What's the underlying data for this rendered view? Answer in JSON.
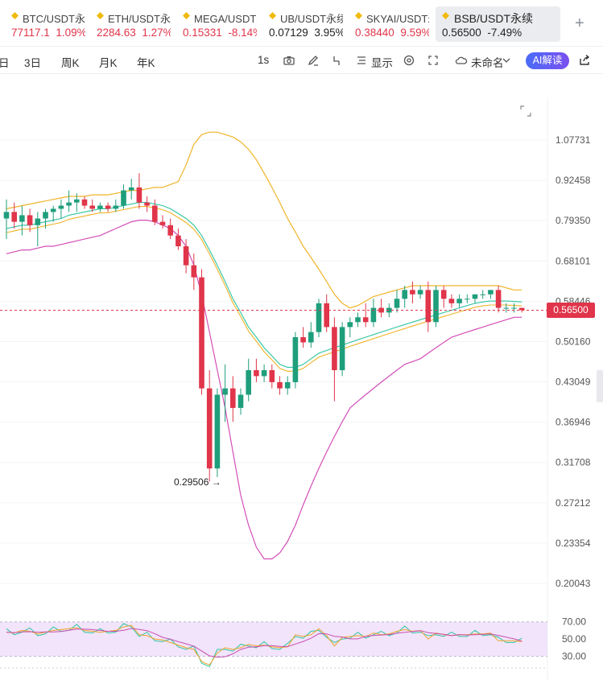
{
  "tickers": [
    {
      "name": "BTC/USDT永续",
      "price": "77117.1",
      "change": "1.09%",
      "dir": "up"
    },
    {
      "name": "ETH/USDT永续",
      "price": "2284.63",
      "change": "1.27%",
      "dir": "up"
    },
    {
      "name": "MEGA/USDT永续",
      "price": "0.15331",
      "change": "-8.14%",
      "dir": "down"
    },
    {
      "name": "UB/USDT永续",
      "price": "0.07129",
      "change": "3.95%",
      "dir": "up_dark"
    },
    {
      "name": "SKYAI/USDT永续",
      "price": "0.38440",
      "change": "9.59%",
      "dir": "up"
    },
    {
      "name": "BSB/USDT永续",
      "price": "0.56500",
      "change": "-7.49%",
      "dir": "down_dark"
    }
  ],
  "toolbar": {
    "intervals": [
      "日",
      "3日",
      "周K",
      "月K",
      "年K"
    ],
    "realtime": "1s",
    "display": "显示",
    "unnamed": "未命名",
    "ai": "AI解读"
  },
  "colors": {
    "up": "#1f9e7c",
    "down": "#e0354a",
    "boll_mid": "#2ec4a0",
    "boll_band": "#f0b429",
    "boll_low": "#d44fb8",
    "rsi_band": "#f1e4fb"
  },
  "chart_data": {
    "type": "candlestick",
    "y_ticks": [
      "1.07731",
      "0.92458",
      "0.79350",
      "0.68101",
      "0.58446",
      "0.50160",
      "0.43049",
      "0.36946",
      "0.31708",
      "0.27212",
      "0.23354",
      "0.20043"
    ],
    "current_price": "0.56500",
    "lowest_label": "0.29506",
    "rsi_ticks": [
      "70.00",
      "50.00",
      "30.00"
    ],
    "candles": [
      {
        "o": 0.8,
        "h": 0.86,
        "l": 0.74,
        "c": 0.82
      },
      {
        "o": 0.82,
        "h": 0.85,
        "l": 0.77,
        "c": 0.79
      },
      {
        "o": 0.79,
        "h": 0.84,
        "l": 0.75,
        "c": 0.81
      },
      {
        "o": 0.81,
        "h": 0.83,
        "l": 0.76,
        "c": 0.78
      },
      {
        "o": 0.78,
        "h": 0.82,
        "l": 0.72,
        "c": 0.8
      },
      {
        "o": 0.8,
        "h": 0.83,
        "l": 0.77,
        "c": 0.82
      },
      {
        "o": 0.82,
        "h": 0.84,
        "l": 0.79,
        "c": 0.83
      },
      {
        "o": 0.83,
        "h": 0.86,
        "l": 0.8,
        "c": 0.84
      },
      {
        "o": 0.84,
        "h": 0.89,
        "l": 0.82,
        "c": 0.85
      },
      {
        "o": 0.85,
        "h": 0.88,
        "l": 0.82,
        "c": 0.86
      },
      {
        "o": 0.86,
        "h": 0.87,
        "l": 0.83,
        "c": 0.84
      },
      {
        "o": 0.84,
        "h": 0.86,
        "l": 0.82,
        "c": 0.83
      },
      {
        "o": 0.83,
        "h": 0.85,
        "l": 0.82,
        "c": 0.84
      },
      {
        "o": 0.84,
        "h": 0.85,
        "l": 0.82,
        "c": 0.83
      },
      {
        "o": 0.83,
        "h": 0.86,
        "l": 0.82,
        "c": 0.84
      },
      {
        "o": 0.84,
        "h": 0.91,
        "l": 0.83,
        "c": 0.89
      },
      {
        "o": 0.89,
        "h": 0.93,
        "l": 0.86,
        "c": 0.9
      },
      {
        "o": 0.9,
        "h": 0.95,
        "l": 0.83,
        "c": 0.85
      },
      {
        "o": 0.85,
        "h": 0.87,
        "l": 0.82,
        "c": 0.84
      },
      {
        "o": 0.84,
        "h": 0.86,
        "l": 0.78,
        "c": 0.79
      },
      {
        "o": 0.79,
        "h": 0.81,
        "l": 0.77,
        "c": 0.78
      },
      {
        "o": 0.78,
        "h": 0.8,
        "l": 0.74,
        "c": 0.75
      },
      {
        "o": 0.75,
        "h": 0.77,
        "l": 0.71,
        "c": 0.72
      },
      {
        "o": 0.72,
        "h": 0.74,
        "l": 0.65,
        "c": 0.67
      },
      {
        "o": 0.67,
        "h": 0.7,
        "l": 0.61,
        "c": 0.64
      },
      {
        "o": 0.64,
        "h": 0.66,
        "l": 0.41,
        "c": 0.42
      },
      {
        "o": 0.42,
        "h": 0.45,
        "l": 0.295,
        "c": 0.31
      },
      {
        "o": 0.31,
        "h": 0.42,
        "l": 0.3,
        "c": 0.41
      },
      {
        "o": 0.41,
        "h": 0.46,
        "l": 0.37,
        "c": 0.42
      },
      {
        "o": 0.42,
        "h": 0.44,
        "l": 0.37,
        "c": 0.39
      },
      {
        "o": 0.39,
        "h": 0.42,
        "l": 0.38,
        "c": 0.41
      },
      {
        "o": 0.41,
        "h": 0.47,
        "l": 0.4,
        "c": 0.45
      },
      {
        "o": 0.45,
        "h": 0.47,
        "l": 0.43,
        "c": 0.44
      },
      {
        "o": 0.44,
        "h": 0.46,
        "l": 0.43,
        "c": 0.45
      },
      {
        "o": 0.45,
        "h": 0.46,
        "l": 0.42,
        "c": 0.43
      },
      {
        "o": 0.43,
        "h": 0.44,
        "l": 0.41,
        "c": 0.42
      },
      {
        "o": 0.42,
        "h": 0.44,
        "l": 0.41,
        "c": 0.43
      },
      {
        "o": 0.43,
        "h": 0.52,
        "l": 0.42,
        "c": 0.51
      },
      {
        "o": 0.51,
        "h": 0.53,
        "l": 0.49,
        "c": 0.5
      },
      {
        "o": 0.5,
        "h": 0.54,
        "l": 0.49,
        "c": 0.52
      },
      {
        "o": 0.52,
        "h": 0.59,
        "l": 0.51,
        "c": 0.58
      },
      {
        "o": 0.58,
        "h": 0.6,
        "l": 0.52,
        "c": 0.53
      },
      {
        "o": 0.53,
        "h": 0.55,
        "l": 0.4,
        "c": 0.45
      },
      {
        "o": 0.45,
        "h": 0.54,
        "l": 0.44,
        "c": 0.53
      },
      {
        "o": 0.53,
        "h": 0.55,
        "l": 0.51,
        "c": 0.54
      },
      {
        "o": 0.54,
        "h": 0.56,
        "l": 0.53,
        "c": 0.55
      },
      {
        "o": 0.55,
        "h": 0.58,
        "l": 0.53,
        "c": 0.54
      },
      {
        "o": 0.54,
        "h": 0.59,
        "l": 0.53,
        "c": 0.57
      },
      {
        "o": 0.57,
        "h": 0.59,
        "l": 0.55,
        "c": 0.56
      },
      {
        "o": 0.56,
        "h": 0.58,
        "l": 0.55,
        "c": 0.57
      },
      {
        "o": 0.57,
        "h": 0.61,
        "l": 0.56,
        "c": 0.59
      },
      {
        "o": 0.59,
        "h": 0.62,
        "l": 0.57,
        "c": 0.61
      },
      {
        "o": 0.61,
        "h": 0.63,
        "l": 0.58,
        "c": 0.6
      },
      {
        "o": 0.6,
        "h": 0.62,
        "l": 0.59,
        "c": 0.61
      },
      {
        "o": 0.61,
        "h": 0.63,
        "l": 0.52,
        "c": 0.54
      },
      {
        "o": 0.54,
        "h": 0.62,
        "l": 0.53,
        "c": 0.61
      },
      {
        "o": 0.61,
        "h": 0.62,
        "l": 0.57,
        "c": 0.59
      },
      {
        "o": 0.59,
        "h": 0.6,
        "l": 0.57,
        "c": 0.58
      },
      {
        "o": 0.58,
        "h": 0.6,
        "l": 0.57,
        "c": 0.59
      },
      {
        "o": 0.59,
        "h": 0.6,
        "l": 0.58,
        "c": 0.59
      },
      {
        "o": 0.59,
        "h": 0.6,
        "l": 0.58,
        "c": 0.6
      },
      {
        "o": 0.6,
        "h": 0.61,
        "l": 0.59,
        "c": 0.6
      },
      {
        "o": 0.6,
        "h": 0.61,
        "l": 0.59,
        "c": 0.61
      },
      {
        "o": 0.61,
        "h": 0.62,
        "l": 0.56,
        "c": 0.57
      },
      {
        "o": 0.57,
        "h": 0.58,
        "l": 0.56,
        "c": 0.57
      },
      {
        "o": 0.57,
        "h": 0.58,
        "l": 0.56,
        "c": 0.57
      },
      {
        "o": 0.57,
        "h": 0.57,
        "l": 0.56,
        "c": 0.565
      }
    ],
    "boll_mid": [
      0.77,
      0.775,
      0.78,
      0.78,
      0.785,
      0.79,
      0.795,
      0.8,
      0.81,
      0.815,
      0.82,
      0.825,
      0.83,
      0.83,
      0.835,
      0.84,
      0.845,
      0.85,
      0.85,
      0.845,
      0.84,
      0.83,
      0.815,
      0.8,
      0.78,
      0.75,
      0.71,
      0.67,
      0.63,
      0.59,
      0.56,
      0.53,
      0.51,
      0.49,
      0.475,
      0.46,
      0.455,
      0.455,
      0.46,
      0.47,
      0.48,
      0.485,
      0.49,
      0.495,
      0.5,
      0.505,
      0.51,
      0.515,
      0.52,
      0.525,
      0.53,
      0.535,
      0.54,
      0.545,
      0.55,
      0.555,
      0.56,
      0.565,
      0.57,
      0.575,
      0.58,
      0.583,
      0.585,
      0.585,
      0.585,
      0.584,
      0.583
    ],
    "boll_upper": [
      0.83,
      0.835,
      0.84,
      0.845,
      0.85,
      0.855,
      0.86,
      0.865,
      0.87,
      0.87,
      0.87,
      0.875,
      0.875,
      0.875,
      0.88,
      0.885,
      0.89,
      0.89,
      0.895,
      0.9,
      0.9,
      0.91,
      0.92,
      0.98,
      1.06,
      1.1,
      1.11,
      1.11,
      1.1,
      1.09,
      1.07,
      1.04,
      1.0,
      0.95,
      0.9,
      0.85,
      0.8,
      0.76,
      0.72,
      0.69,
      0.66,
      0.63,
      0.6,
      0.58,
      0.57,
      0.575,
      0.585,
      0.595,
      0.6,
      0.605,
      0.61,
      0.615,
      0.62,
      0.62,
      0.62,
      0.62,
      0.62,
      0.62,
      0.62,
      0.62,
      0.62,
      0.62,
      0.62,
      0.62,
      0.615,
      0.61,
      0.61
    ],
    "boll_lower": [
      0.7,
      0.705,
      0.71,
      0.71,
      0.715,
      0.72,
      0.72,
      0.725,
      0.73,
      0.735,
      0.74,
      0.745,
      0.75,
      0.76,
      0.77,
      0.78,
      0.79,
      0.795,
      0.795,
      0.79,
      0.78,
      0.77,
      0.75,
      0.72,
      0.67,
      0.6,
      0.52,
      0.45,
      0.39,
      0.33,
      0.28,
      0.25,
      0.23,
      0.22,
      0.22,
      0.225,
      0.235,
      0.25,
      0.27,
      0.29,
      0.31,
      0.33,
      0.35,
      0.37,
      0.39,
      0.4,
      0.41,
      0.42,
      0.43,
      0.44,
      0.45,
      0.46,
      0.465,
      0.47,
      0.48,
      0.49,
      0.5,
      0.51,
      0.515,
      0.52,
      0.525,
      0.53,
      0.535,
      0.54,
      0.545,
      0.55,
      0.55
    ],
    "rsi": [
      58,
      57,
      60,
      59,
      56,
      58,
      60,
      61,
      62,
      63,
      60,
      59,
      58,
      59,
      60,
      64,
      66,
      55,
      54,
      50,
      49,
      46,
      43,
      40,
      38,
      24,
      20,
      34,
      40,
      38,
      40,
      44,
      42,
      43,
      41,
      40,
      41,
      55,
      53,
      55,
      62,
      54,
      42,
      52,
      53,
      54,
      53,
      57,
      55,
      56,
      59,
      61,
      59,
      60,
      50,
      57,
      55,
      54,
      55,
      55,
      56,
      56,
      57,
      48,
      48,
      48,
      47
    ]
  }
}
